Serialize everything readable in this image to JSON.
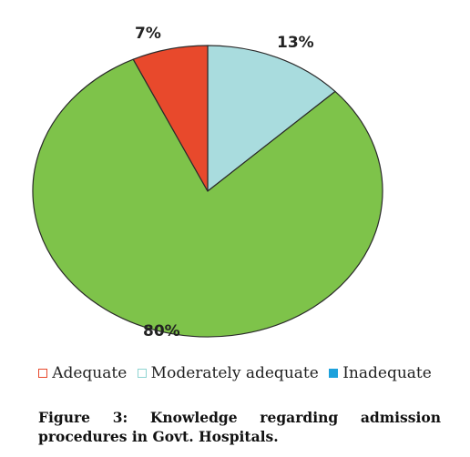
{
  "chart_data": {
    "type": "pie",
    "categories": [
      "Adequate",
      "Moderately adequate",
      "Inadequate"
    ],
    "values": [
      7,
      80,
      13
    ],
    "value_labels": [
      "7%",
      "80%",
      "13%"
    ],
    "slice_colors": [
      "#e8492c",
      "#7ec34a",
      "#a9dcde"
    ],
    "legend": {
      "placement": "bottom",
      "items": [
        {
          "label": "Adequate",
          "marker": "□",
          "color": "#e8492c"
        },
        {
          "label": "Moderately adequate",
          "marker": "□",
          "color": "#8fd4d2"
        },
        {
          "label": "Inadequate",
          "marker": "■",
          "color": "#1da1dc"
        }
      ]
    }
  },
  "caption": "Figure 3: Knowledge regarding admission procedures in Govt. Hospitals."
}
